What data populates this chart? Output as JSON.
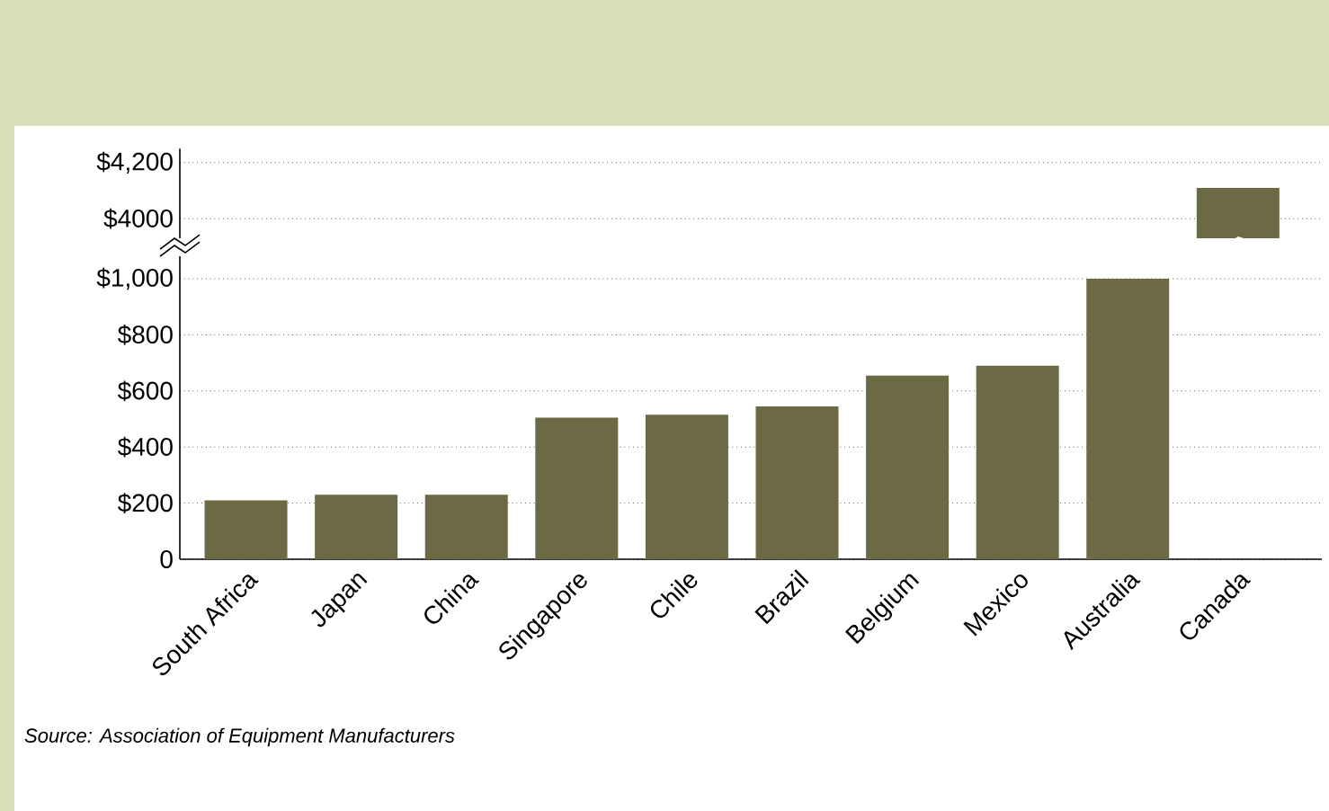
{
  "chart_data": [
    {
      "type": "bar",
      "categories": [
        null,
        null,
        null,
        null,
        null,
        null,
        null,
        null,
        null,
        null
      ],
      "values": [
        null,
        null,
        null,
        null,
        null,
        null,
        null,
        null,
        null,
        4110
      ],
      "color": "#6b6a45",
      "ylim": [
        3930,
        4250
      ],
      "yticks": [
        {
          "value": 4000,
          "label": "$4000"
        },
        {
          "value": 4200,
          "label": "$4,200"
        }
      ],
      "grid": "y",
      "tick_labels": "y"
    },
    {
      "type": "bar",
      "categories": [
        "South Africa",
        "Japan",
        "China",
        "Singapore",
        "Chile",
        "Brazil",
        "Belgium",
        "Mexico",
        "Australia",
        "Canada"
      ],
      "values": [
        210,
        230,
        230,
        505,
        515,
        545,
        655,
        690,
        1000,
        null
      ],
      "color": "#6b6a45",
      "ylim": [
        0,
        1080
      ],
      "yticks": [
        0,
        {
          "value": 200,
          "label": "$200"
        },
        {
          "value": 400,
          "label": "$400"
        },
        {
          "value": 600,
          "label": "$600"
        },
        {
          "value": 800,
          "label": "$800"
        },
        {
          "value": 1000,
          "label": "$1,000"
        }
      ],
      "grid": "y",
      "annotations": [
        "Source: Association of Equipment Manufacturers"
      ]
    }
  ]
}
